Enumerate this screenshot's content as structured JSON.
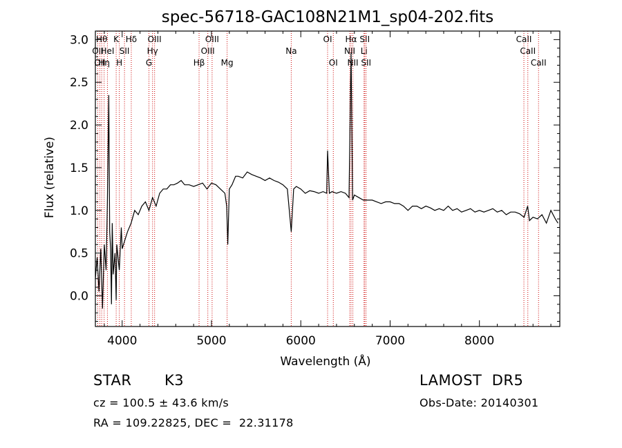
{
  "chart_data": {
    "type": "line",
    "title": "spec-56718-GAC108N21M1_sp04-202.fits",
    "xlabel": "Wavelength (Å)",
    "ylabel": "Flux (relative)",
    "xlim": [
      3700,
      8900
    ],
    "ylim": [
      -0.36,
      3.1
    ],
    "xticks": [
      4000,
      5000,
      6000,
      7000,
      8000
    ],
    "yticks": [
      0.0,
      0.5,
      1.0,
      1.5,
      2.0,
      2.5,
      3.0
    ],
    "xtick_labels": [
      "4000",
      "5000",
      "6000",
      "7000",
      "8000"
    ],
    "ytick_labels": [
      "0.0",
      "0.5",
      "1.0",
      "1.5",
      "2.0",
      "2.5",
      "3.0"
    ],
    "grid": false,
    "line_color": "#000000",
    "marker_color": "#cc0000",
    "series": [
      {
        "x": [
          3700,
          3720,
          3740,
          3760,
          3780,
          3800,
          3820,
          3835,
          3850,
          3860,
          3870,
          3880,
          3889,
          3900,
          3920,
          3933,
          3940,
          3968,
          3990,
          4000,
          4030,
          4060,
          4100,
          4140,
          4180,
          4220,
          4260,
          4300,
          4340,
          4380,
          4420,
          4460,
          4500,
          4540,
          4580,
          4620,
          4660,
          4700,
          4750,
          4800,
          4850,
          4900,
          4950,
          5000,
          5050,
          5100,
          5150,
          5170,
          5183,
          5200,
          5230,
          5250,
          5270,
          5300,
          5350,
          5400,
          5450,
          5500,
          5550,
          5600,
          5650,
          5700,
          5750,
          5800,
          5850,
          5893,
          5920,
          5950,
          6000,
          6050,
          6100,
          6150,
          6200,
          6250,
          6290,
          6300,
          6320,
          6350,
          6400,
          6450,
          6500,
          6540,
          6563,
          6580,
          6600,
          6650,
          6700,
          6750,
          6800,
          6850,
          6900,
          6950,
          7000,
          7050,
          7100,
          7150,
          7200,
          7250,
          7300,
          7350,
          7400,
          7450,
          7500,
          7550,
          7600,
          7650,
          7700,
          7750,
          7800,
          7850,
          7900,
          7950,
          8000,
          8050,
          8100,
          8150,
          8200,
          8250,
          8300,
          8350,
          8400,
          8450,
          8500,
          8540,
          8560,
          8600,
          8650,
          8700,
          8750,
          8800,
          8850,
          8880
        ],
        "y": [
          0.2,
          0.45,
          0.05,
          0.55,
          -0.15,
          0.6,
          0.3,
          1.1,
          2.35,
          0.75,
          0.55,
          -0.1,
          0.85,
          0.25,
          0.5,
          -0.05,
          0.6,
          0.3,
          0.8,
          0.55,
          0.65,
          0.75,
          0.85,
          1.0,
          0.95,
          1.05,
          1.1,
          1.0,
          1.15,
          1.05,
          1.2,
          1.25,
          1.25,
          1.3,
          1.3,
          1.32,
          1.35,
          1.3,
          1.3,
          1.28,
          1.3,
          1.32,
          1.25,
          1.32,
          1.3,
          1.25,
          1.2,
          1.05,
          0.6,
          1.25,
          1.3,
          1.35,
          1.4,
          1.4,
          1.38,
          1.45,
          1.42,
          1.4,
          1.38,
          1.35,
          1.38,
          1.35,
          1.33,
          1.3,
          1.25,
          0.75,
          1.25,
          1.28,
          1.25,
          1.2,
          1.23,
          1.22,
          1.2,
          1.22,
          1.2,
          1.7,
          1.2,
          1.22,
          1.2,
          1.22,
          1.2,
          1.15,
          2.85,
          1.12,
          1.18,
          1.15,
          1.12,
          1.12,
          1.12,
          1.1,
          1.08,
          1.1,
          1.1,
          1.08,
          1.08,
          1.05,
          1.0,
          1.05,
          1.05,
          1.02,
          1.05,
          1.03,
          1.0,
          1.02,
          1.0,
          1.05,
          1.0,
          1.02,
          0.98,
          1.0,
          1.02,
          0.98,
          1.0,
          0.98,
          1.0,
          1.02,
          0.98,
          1.0,
          0.95,
          0.98,
          0.98,
          0.96,
          0.92,
          1.05,
          0.88,
          0.92,
          0.9,
          0.95,
          0.85,
          1.0,
          0.9,
          0.85
        ]
      }
    ],
    "line_markers": [
      {
        "x": 3727,
        "labels": [
          "OII"
        ],
        "row": 1
      },
      {
        "x": 3750,
        "labels": [
          "OII"
        ],
        "row": 2
      },
      {
        "x": 3771,
        "labels": [
          "Hθ"
        ],
        "row": 0
      },
      {
        "x": 3798,
        "labels": [
          "Hη"
        ],
        "row": 2
      },
      {
        "x": 3835,
        "labels": [
          "HeI"
        ],
        "row": 1
      },
      {
        "x": 3933,
        "labels": [
          "K"
        ],
        "row": 0
      },
      {
        "x": 3968,
        "labels": [
          "H"
        ],
        "row": 2
      },
      {
        "x": 4026,
        "labels": [
          "SII"
        ],
        "row": 1
      },
      {
        "x": 4102,
        "labels": [
          "Hδ"
        ],
        "row": 0
      },
      {
        "x": 4300,
        "labels": [
          "G"
        ],
        "row": 2
      },
      {
        "x": 4340,
        "labels": [
          "Hγ"
        ],
        "row": 1
      },
      {
        "x": 4363,
        "labels": [
          "OIII"
        ],
        "row": 0
      },
      {
        "x": 4861,
        "labels": [
          "Hβ"
        ],
        "row": 2
      },
      {
        "x": 4959,
        "labels": [
          "OIII"
        ],
        "row": 1
      },
      {
        "x": 5007,
        "labels": [
          "OIII"
        ],
        "row": 0
      },
      {
        "x": 5175,
        "labels": [
          "Mg"
        ],
        "row": 2
      },
      {
        "x": 5893,
        "labels": [
          "Na"
        ],
        "row": 1
      },
      {
        "x": 6300,
        "labels": [
          "OI"
        ],
        "row": 0
      },
      {
        "x": 6364,
        "labels": [
          "OI"
        ],
        "row": 2
      },
      {
        "x": 6548,
        "labels": [
          "NII"
        ],
        "row": 1
      },
      {
        "x": 6563,
        "labels": [
          "Hα"
        ],
        "row": 0
      },
      {
        "x": 6583,
        "labels": [
          "NII"
        ],
        "row": 2
      },
      {
        "x": 6708,
        "labels": [
          "Li"
        ],
        "row": 1
      },
      {
        "x": 6716,
        "labels": [
          "SII"
        ],
        "row": 0
      },
      {
        "x": 6731,
        "labels": [
          "SII"
        ],
        "row": 2
      },
      {
        "x": 8498,
        "labels": [
          "CaII"
        ],
        "row": 0
      },
      {
        "x": 8542,
        "labels": [
          "CaII"
        ],
        "row": 1
      },
      {
        "x": 8662,
        "labels": [
          "CaII"
        ],
        "row": 2
      }
    ]
  },
  "info": {
    "object_class": "STAR",
    "subclass": "K3",
    "survey": "LAMOST  DR5",
    "redshift": "cz = 100.5 ± 43.6 km/s",
    "obs_date": "Obs-Date: 20140301",
    "coordinates": "RA = 109.22825, DEC =  22.31178"
  }
}
